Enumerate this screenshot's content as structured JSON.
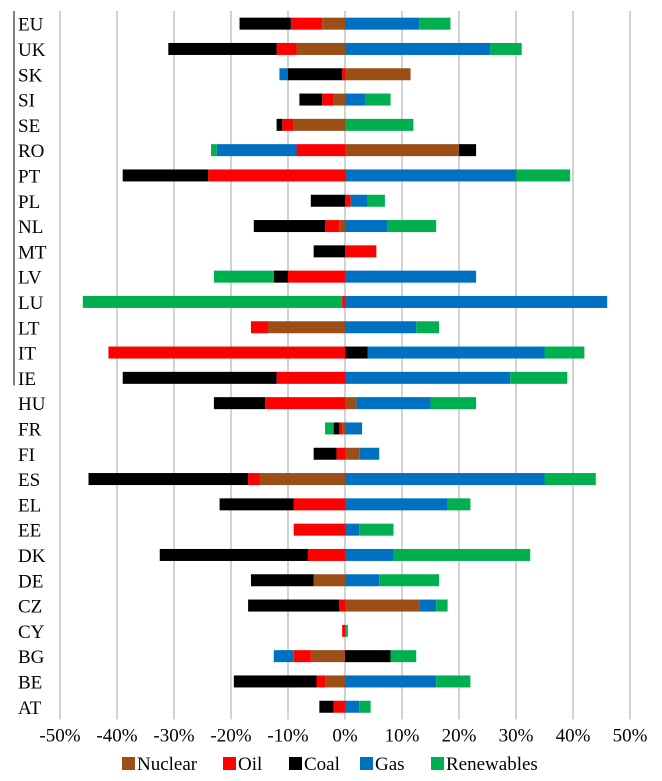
{
  "chart_data": {
    "type": "bar",
    "orientation": "horizontal",
    "stacked": "diverging",
    "categories": [
      "EU",
      "UK",
      "SK",
      "SI",
      "SE",
      "RO",
      "PT",
      "PL",
      "NL",
      "MT",
      "LV",
      "LU",
      "LT",
      "IT",
      "IE",
      "HU",
      "FR",
      "FI",
      "ES",
      "EL",
      "EE",
      "DK",
      "DE",
      "CZ",
      "CY",
      "BG",
      "BE",
      "AT"
    ],
    "xlim": [
      -50,
      50
    ],
    "x_unit": "%",
    "x_ticks": [
      "-50%",
      "-40%",
      "-30%",
      "-20%",
      "-10%",
      "0%",
      "10%",
      "20%",
      "30%",
      "40%",
      "50%"
    ],
    "grid": "vertical",
    "legend_position": "bottom",
    "series": [
      {
        "name": "Nuclear",
        "color": "#9b4f17",
        "values": [
          -4,
          -8.5,
          11.5,
          -2,
          -9,
          20,
          0,
          0,
          -1,
          0,
          0,
          0,
          -13.5,
          0,
          0,
          2,
          -0.5,
          2.5,
          -15,
          0,
          0,
          0,
          -5.5,
          13,
          0,
          -6,
          -3.5,
          0
        ]
      },
      {
        "name": "Oil",
        "color": "#fe0000",
        "values": [
          -5.5,
          -3.5,
          -0.5,
          -2,
          -2,
          -8.5,
          -24,
          1,
          -2.5,
          5.5,
          -10,
          -0.5,
          -3,
          -41.5,
          -12,
          -14,
          -0.5,
          -1.5,
          -2,
          -9,
          -9,
          -6.5,
          0,
          -1,
          -0.5,
          -3,
          -1.5,
          -2
        ]
      },
      {
        "name": "Coal",
        "color": "#000000",
        "values": [
          -9,
          -19,
          -9.5,
          -4,
          -1,
          3,
          -15,
          -6,
          -12.5,
          -5.5,
          -2.5,
          0,
          0,
          4,
          -27,
          -9,
          -1,
          -4,
          -28,
          -13,
          0,
          -26,
          -11,
          -16,
          0,
          8,
          -14.5,
          -2.5
        ]
      },
      {
        "name": "Gas",
        "color": "#0070c0",
        "values": [
          13,
          25.5,
          -1.5,
          3.5,
          0,
          -14,
          30,
          3,
          7.5,
          0,
          23,
          46,
          12.5,
          31,
          29,
          13,
          3,
          3.5,
          35,
          18,
          2.5,
          8.5,
          6,
          3,
          0,
          -3.5,
          16,
          2.5
        ]
      },
      {
        "name": "Renewables",
        "color": "#00b050",
        "values": [
          5.5,
          5.5,
          0,
          4.5,
          12,
          -1,
          9.5,
          3,
          8.5,
          0,
          -10.5,
          -45.5,
          4,
          7,
          10,
          8,
          -1.5,
          0,
          9,
          4,
          6,
          24,
          10.5,
          2,
          0.5,
          4.5,
          6,
          2
        ]
      }
    ]
  }
}
